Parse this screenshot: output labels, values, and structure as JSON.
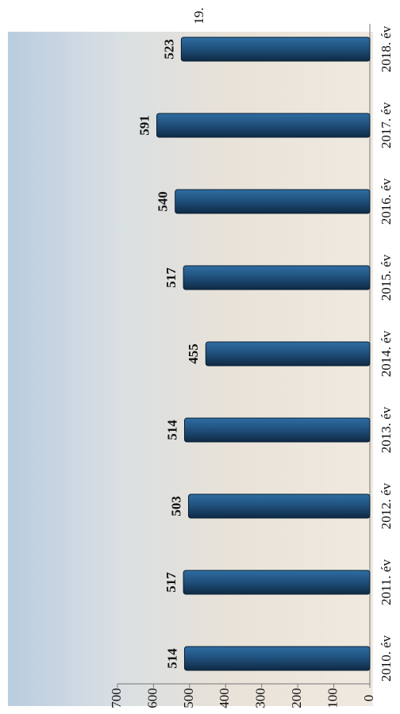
{
  "page_number": "19.",
  "chart_data": {
    "type": "bar",
    "orientation": "horizontal-rotated",
    "categories": [
      "2010. év",
      "2011. év",
      "2012. év",
      "2013. év",
      "2014. év",
      "2015. év",
      "2016. év",
      "2017. év",
      "2018. év"
    ],
    "values": [
      514,
      517,
      503,
      514,
      455,
      517,
      540,
      591,
      523
    ],
    "color": "#1f4e79",
    "ylim": [
      0,
      700
    ],
    "yticks": [
      0,
      100,
      200,
      300,
      400,
      500,
      600,
      700
    ]
  }
}
